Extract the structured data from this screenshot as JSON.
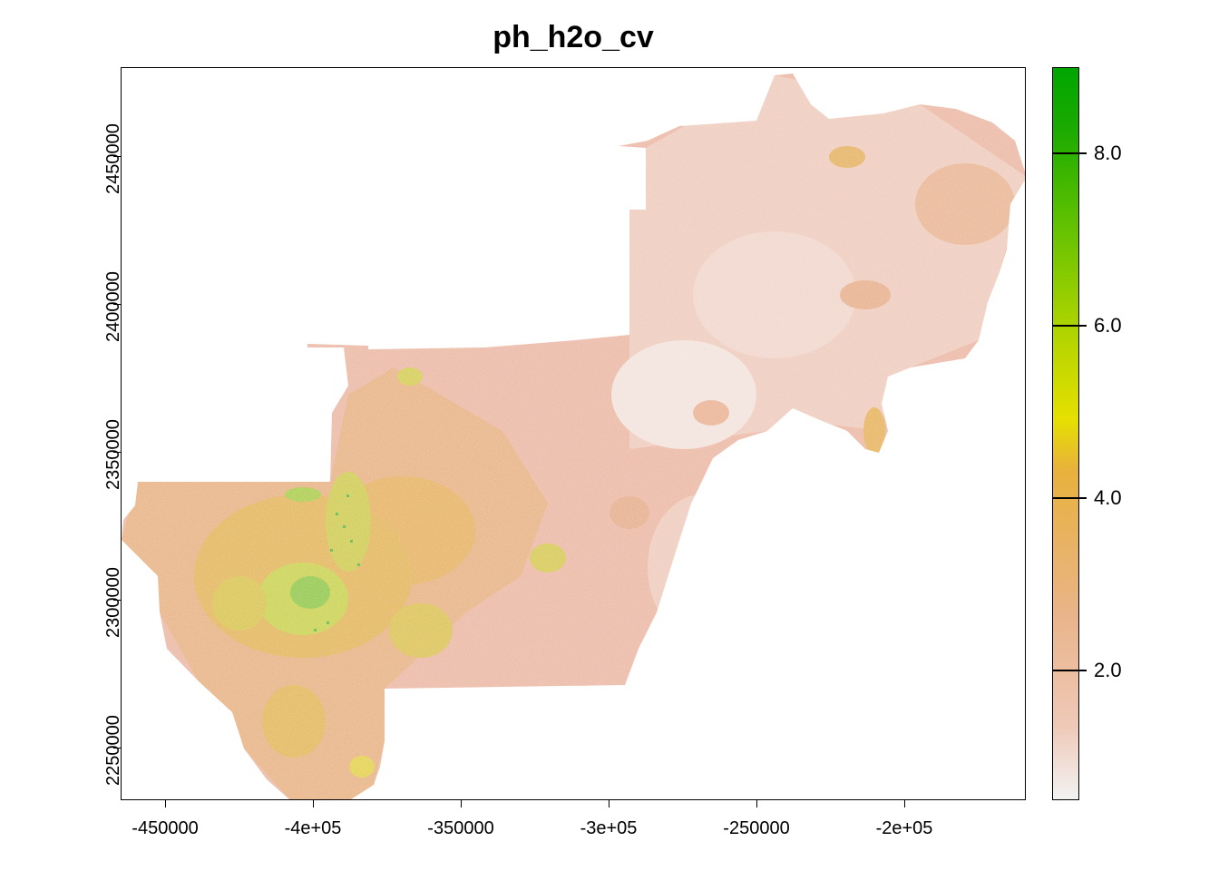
{
  "title": "ph_h2o_cv",
  "x_axis": {
    "ticks": [
      {
        "value": -450000,
        "label": "-450000"
      },
      {
        "value": -400000,
        "label": "-4e+05"
      },
      {
        "value": -350000,
        "label": "-350000"
      },
      {
        "value": -300000,
        "label": "-3e+05"
      },
      {
        "value": -250000,
        "label": "-250000"
      },
      {
        "value": -200000,
        "label": "-2e+05"
      }
    ]
  },
  "y_axis": {
    "ticks": [
      {
        "value": 2450000,
        "label": "2450000"
      },
      {
        "value": 2400000,
        "label": "2400000"
      },
      {
        "value": 2350000,
        "label": "2350000"
      },
      {
        "value": 2300000,
        "label": "2300000"
      },
      {
        "value": 2250000,
        "label": "2250000"
      }
    ]
  },
  "legend": {
    "range": [
      0.5,
      9.0
    ],
    "ticks": [
      {
        "value": 2.0,
        "label": "2.0"
      },
      {
        "value": 4.0,
        "label": "4.0"
      },
      {
        "value": 6.0,
        "label": "6.0"
      },
      {
        "value": 8.0,
        "label": "8.0"
      }
    ]
  },
  "colors": {
    "low": "#f2f2f2",
    "base": "#ebb49c",
    "mid": "#e8b13c",
    "yellow": "#e6e000",
    "high": "#00a600"
  }
}
